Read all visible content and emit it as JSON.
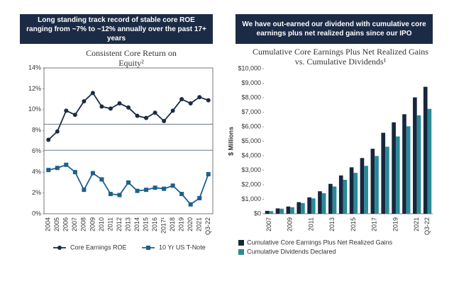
{
  "chart_data": [
    {
      "type": "line",
      "header": "Long standing track record of stable core ROE ranging from ~7% to ~12% annually over the past 17+ years",
      "title": "Consistent Core Return on Equity²",
      "categories": [
        "2004",
        "2005",
        "2006",
        "2007",
        "2008",
        "2009",
        "2010",
        "2011",
        "2012",
        "2013",
        "2014",
        "2015",
        "2016",
        "2017¹",
        "2018",
        "2019",
        "2020",
        "2021",
        "Q3-22"
      ],
      "series": [
        {
          "name": "Core Earnings ROE",
          "color": "#1c2b45",
          "marker": "circle",
          "values": [
            7.1,
            7.9,
            9.9,
            9.5,
            10.8,
            11.6,
            10.3,
            10.1,
            10.6,
            10.2,
            9.4,
            9.2,
            9.7,
            8.9,
            9.9,
            11.0,
            10.6,
            11.2,
            10.9
          ]
        },
        {
          "name": "10 Yr US T-Note",
          "color": "#1f5f8b",
          "marker": "square",
          "values": [
            4.2,
            4.4,
            4.7,
            4.0,
            2.3,
            3.9,
            3.3,
            1.9,
            1.8,
            3.0,
            2.2,
            2.3,
            2.5,
            2.4,
            2.7,
            1.9,
            0.9,
            1.5,
            3.8
          ]
        }
      ],
      "reference_lines": [
        8.6,
        6.1
      ],
      "ylim": [
        0,
        14
      ],
      "yticks": [
        {
          "value": 0,
          "label": "0%"
        },
        {
          "value": 2,
          "label": "2%"
        },
        {
          "value": 4,
          "label": "4%"
        },
        {
          "value": 6,
          "label": "6%"
        },
        {
          "value": 8,
          "label": "8%"
        },
        {
          "value": 10,
          "label": "10%"
        },
        {
          "value": 12,
          "label": "12%"
        },
        {
          "value": 14,
          "label": "14%"
        }
      ]
    },
    {
      "type": "bar",
      "header": "We have out-earned our dividend with cumulative core earnings plus net realized gains since our IPO",
      "title": "Cumulative Core Earnings Plus Net Realized Gains vs. Cumulative Dividends¹",
      "ylabel": "$ Millions",
      "categories": [
        "2007",
        null,
        "2009",
        null,
        "2011",
        null,
        "2013",
        null,
        "2015",
        null,
        "2017",
        null,
        "2019",
        null,
        "2021",
        "Q3-22"
      ],
      "series": [
        {
          "name": "Cumulative Core Earnings Plus Net Realized Gains",
          "color": "#17263d",
          "values": [
            200,
            370,
            500,
            800,
            1130,
            1550,
            2060,
            2640,
            3200,
            3840,
            4480,
            5580,
            6300,
            6860,
            8020,
            8750
          ]
        },
        {
          "name": "Cumulative Dividends Declared",
          "color": "#2a8a97",
          "values": [
            180,
            350,
            450,
            740,
            1060,
            1420,
            1880,
            2340,
            2820,
            3300,
            3980,
            4620,
            5330,
            6030,
            6780,
            7230
          ]
        }
      ],
      "ylim": [
        0,
        10000
      ],
      "yticks": [
        {
          "value": 0,
          "label": "$0"
        },
        {
          "value": 1000,
          "label": "$1,000"
        },
        {
          "value": 2000,
          "label": "$2,000"
        },
        {
          "value": 3000,
          "label": "$3,000"
        },
        {
          "value": 4000,
          "label": "$4,000"
        },
        {
          "value": 5000,
          "label": "$5,000"
        },
        {
          "value": 6000,
          "label": "$6,000"
        },
        {
          "value": 7000,
          "label": "$7,000"
        },
        {
          "value": 8000,
          "label": "$8,000"
        },
        {
          "value": 9000,
          "label": "$9,000"
        },
        {
          "value": 10000,
          "label": "$10,000"
        }
      ]
    }
  ]
}
